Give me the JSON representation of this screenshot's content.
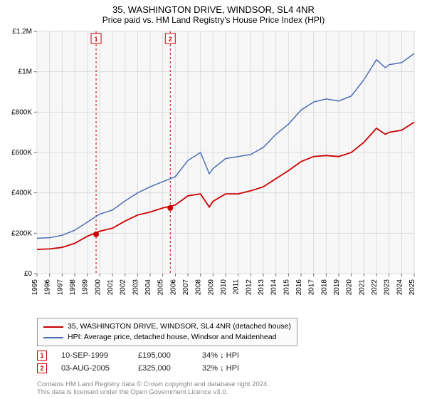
{
  "title": "35, WASHINGTON DRIVE, WINDSOR, SL4 4NR",
  "subtitle": "Price paid vs. HM Land Registry's House Price Index (HPI)",
  "chart": {
    "type": "line",
    "background_color": "#f7f7f7",
    "grid_color": "#dddddd",
    "axis_color": "#666666",
    "title_fontsize": 13,
    "subtitle_fontsize": 12,
    "label_fontsize": 10,
    "x": {
      "min": 1995,
      "max": 2025,
      "ticks": [
        1995,
        1996,
        1997,
        1998,
        1999,
        2000,
        2001,
        2002,
        2003,
        2004,
        2005,
        2006,
        2007,
        2008,
        2009,
        2010,
        2011,
        2012,
        2013,
        2014,
        2015,
        2016,
        2017,
        2018,
        2019,
        2020,
        2021,
        2022,
        2023,
        2024,
        2025
      ],
      "tick_label_rotation": 90
    },
    "y": {
      "min": 0,
      "max": 1200000,
      "ticks": [
        0,
        200000,
        400000,
        600000,
        800000,
        1000000,
        1200000
      ],
      "tick_labels": [
        "£0",
        "£200K",
        "£400K",
        "£600K",
        "£800K",
        "£1M",
        "£1.2M"
      ]
    },
    "series": [
      {
        "name": "35, WASHINGTON DRIVE, WINDSOR, SL4 4NR (detached house)",
        "color": "#cc0000",
        "line_width": 1.8,
        "data": [
          [
            1995,
            120000
          ],
          [
            1996,
            122000
          ],
          [
            1997,
            130000
          ],
          [
            1998,
            150000
          ],
          [
            1999,
            185000
          ],
          [
            2000,
            210000
          ],
          [
            2001,
            225000
          ],
          [
            2002,
            260000
          ],
          [
            2003,
            290000
          ],
          [
            2004,
            305000
          ],
          [
            2005,
            325000
          ],
          [
            2006,
            340000
          ],
          [
            2007,
            385000
          ],
          [
            2008,
            395000
          ],
          [
            2008.7,
            330000
          ],
          [
            2009,
            358000
          ],
          [
            2010,
            395000
          ],
          [
            2011,
            395000
          ],
          [
            2012,
            410000
          ],
          [
            2013,
            430000
          ],
          [
            2014,
            470000
          ],
          [
            2015,
            510000
          ],
          [
            2016,
            555000
          ],
          [
            2017,
            580000
          ],
          [
            2018,
            585000
          ],
          [
            2019,
            580000
          ],
          [
            2020,
            600000
          ],
          [
            2021,
            650000
          ],
          [
            2022,
            720000
          ],
          [
            2022.7,
            690000
          ],
          [
            2023,
            700000
          ],
          [
            2024,
            710000
          ],
          [
            2025,
            750000
          ]
        ]
      },
      {
        "name": "HPI: Average price, detached house, Windsor and Maidenhead",
        "color": "#4a6fb3",
        "line_width": 1.5,
        "data": [
          [
            1995,
            175000
          ],
          [
            1996,
            178000
          ],
          [
            1997,
            190000
          ],
          [
            1998,
            215000
          ],
          [
            1999,
            255000
          ],
          [
            2000,
            295000
          ],
          [
            2001,
            315000
          ],
          [
            2002,
            360000
          ],
          [
            2003,
            400000
          ],
          [
            2004,
            430000
          ],
          [
            2005,
            455000
          ],
          [
            2006,
            480000
          ],
          [
            2007,
            560000
          ],
          [
            2008,
            600000
          ],
          [
            2008.7,
            495000
          ],
          [
            2009,
            520000
          ],
          [
            2010,
            570000
          ],
          [
            2011,
            580000
          ],
          [
            2012,
            590000
          ],
          [
            2013,
            625000
          ],
          [
            2014,
            690000
          ],
          [
            2015,
            740000
          ],
          [
            2016,
            810000
          ],
          [
            2017,
            850000
          ],
          [
            2018,
            865000
          ],
          [
            2019,
            855000
          ],
          [
            2020,
            880000
          ],
          [
            2021,
            960000
          ],
          [
            2022,
            1060000
          ],
          [
            2022.7,
            1020000
          ],
          [
            2023,
            1035000
          ],
          [
            2024,
            1045000
          ],
          [
            2025,
            1090000
          ]
        ]
      }
    ],
    "markers": [
      {
        "label": "1",
        "x": 1999.7,
        "y": 195000,
        "color": "#cc0000",
        "line_dash": "3,3"
      },
      {
        "label": "2",
        "x": 2005.6,
        "y": 325000,
        "color": "#cc0000",
        "line_dash": "3,3"
      }
    ]
  },
  "legend": {
    "items": [
      {
        "color": "#cc0000",
        "label": "35, WASHINGTON DRIVE, WINDSOR, SL4 4NR (detached house)"
      },
      {
        "color": "#4a6fb3",
        "label": "HPI: Average price, detached house, Windsor and Maidenhead"
      }
    ]
  },
  "events": [
    {
      "num": "1",
      "date": "10-SEP-1999",
      "price": "£195,000",
      "note": "34% ↓ HPI",
      "box_color": "#cc0000"
    },
    {
      "num": "2",
      "date": "03-AUG-2005",
      "price": "£325,000",
      "note": "32% ↓ HPI",
      "box_color": "#cc0000"
    }
  ],
  "attribution_line1": "Contains HM Land Registry data © Crown copyright and database right 2024.",
  "attribution_line2": "This data is licensed under the Open Government Licence v3.0."
}
